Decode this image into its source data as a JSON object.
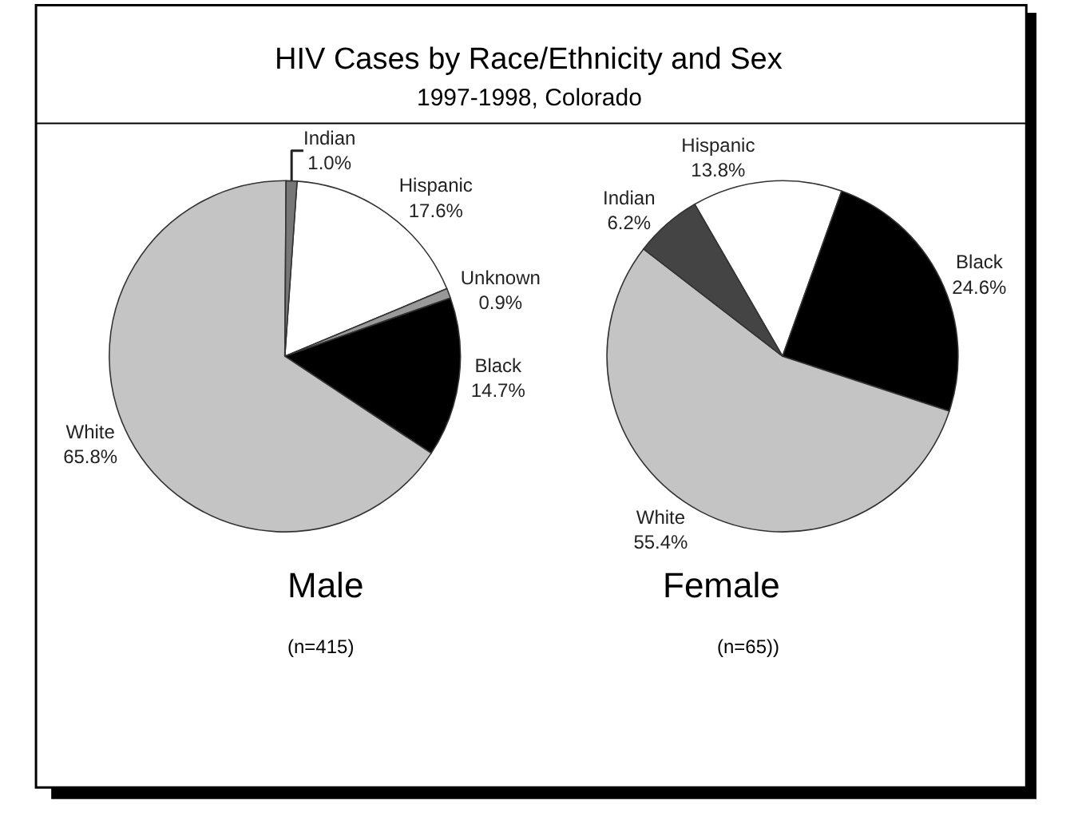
{
  "chart_data": [
    {
      "type": "pie",
      "title": "HIV Cases by Race/Ethnicity and Sex",
      "subtitle": "1997-1998, Colorado",
      "annotations": [
        "Male",
        "(n=415)"
      ],
      "categories": [
        "Hispanic",
        "Unknown",
        "Black",
        "White",
        "Indian"
      ],
      "values": [
        17.6,
        0.9,
        14.7,
        65.8,
        1.0
      ],
      "colors": [
        "#ffffff",
        "#999999",
        "#000000",
        "#c4c4c4",
        "#777777"
      ],
      "value_labels": [
        "17.6%",
        "0.9%",
        "14.7%",
        "65.8%",
        "1.0%"
      ]
    },
    {
      "type": "pie",
      "annotations": [
        "Female",
        "(n=65))"
      ],
      "categories": [
        "Hispanic",
        "Black",
        "White",
        "Indian"
      ],
      "values": [
        13.8,
        24.6,
        55.4,
        6.2
      ],
      "colors": [
        "#ffffff",
        "#000000",
        "#c4c4c4",
        "#444444"
      ],
      "value_labels": [
        "13.8%",
        "24.6%",
        "55.4%",
        "6.2%"
      ]
    }
  ]
}
